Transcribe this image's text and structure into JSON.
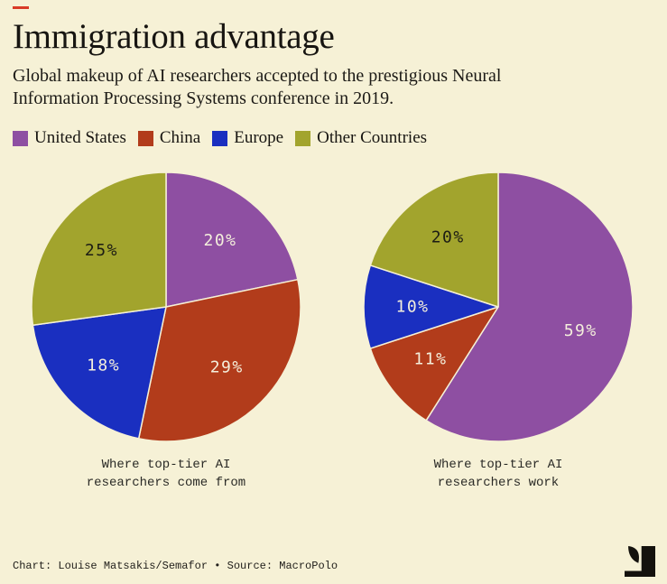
{
  "meta": {
    "background": "#f6f1d6",
    "brand_dash_color": "#d93b27",
    "label_light": "#f4efdc",
    "label_dark": "#1c1c14",
    "logo_black": "#14120d"
  },
  "header": {
    "title": "Immigration advantage",
    "subtitle": "Global makeup of AI researchers accepted to the prestigious Neural\nInformation Processing Systems conference in 2019."
  },
  "legend": {
    "items": [
      {
        "label": "United States",
        "color": "#8e4fa2"
      },
      {
        "label": "China",
        "color": "#b23c1b"
      },
      {
        "label": "Europe",
        "color": "#1a2fc0"
      },
      {
        "label": "Other Countries",
        "color": "#a2a42d"
      }
    ]
  },
  "chart_data": [
    {
      "type": "pie",
      "title": "Where top-tier AI\nresearchers come from",
      "categories": [
        "United States",
        "China",
        "Europe",
        "Other Countries"
      ],
      "values": [
        20,
        29,
        18,
        25
      ],
      "unit": "%",
      "start_angle_deg": 0,
      "direction": "clockwise",
      "label_styles": [
        "light",
        "light",
        "light",
        "dark"
      ],
      "legend_position": "top"
    },
    {
      "type": "pie",
      "title": "Where top-tier AI\nresearchers work",
      "categories": [
        "United States",
        "China",
        "Europe",
        "Other Countries"
      ],
      "values": [
        59,
        11,
        10,
        20
      ],
      "unit": "%",
      "start_angle_deg": 0,
      "direction": "clockwise",
      "label_styles": [
        "light",
        "light",
        "light",
        "dark"
      ],
      "legend_position": "top"
    }
  ],
  "footer": {
    "credit": "Chart: Louise Matsakis/Semafor • Source: MacroPolo",
    "logo_name": "semafor-logo"
  }
}
